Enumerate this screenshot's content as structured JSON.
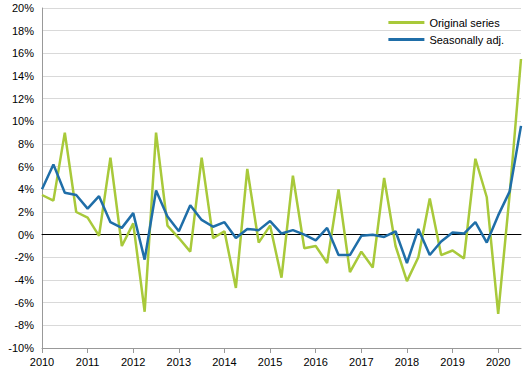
{
  "chart_data": {
    "type": "line",
    "categories": [
      "2010",
      null,
      null,
      null,
      "2011",
      null,
      null,
      null,
      "2012",
      null,
      null,
      null,
      "2013",
      null,
      null,
      null,
      "2014",
      null,
      null,
      null,
      "2015",
      null,
      null,
      null,
      "2016",
      null,
      null,
      null,
      "2017",
      null,
      null,
      null,
      "2018",
      null,
      null,
      null,
      "2019",
      null,
      null,
      null,
      "2020",
      null,
      null
    ],
    "series": [
      {
        "name": "Original series",
        "color": "#a8c93a",
        "values": [
          3.5,
          3.0,
          9.0,
          2.0,
          1.5,
          -0.1,
          6.8,
          -1.0,
          1.0,
          -6.8,
          9.0,
          0.8,
          -0.3,
          -1.5,
          6.8,
          -0.3,
          0.3,
          -4.7,
          5.8,
          -0.7,
          0.8,
          -3.8,
          5.2,
          -1.2,
          -1.0,
          -2.5,
          4.0,
          -3.3,
          -1.5,
          -2.9,
          5.0,
          -1.0,
          -4.1,
          -2.0,
          3.2,
          -1.8,
          -1.4,
          -2.1,
          6.7,
          3.3,
          -7.0,
          3.5,
          15.5
        ]
      },
      {
        "name": "Seasonally adj.",
        "color": "#1f6ea8",
        "values": [
          4.0,
          6.2,
          3.7,
          3.5,
          2.3,
          3.4,
          1.1,
          0.6,
          1.9,
          -2.2,
          3.9,
          1.6,
          0.3,
          2.6,
          1.3,
          0.7,
          1.1,
          -0.3,
          0.5,
          0.4,
          1.2,
          0.1,
          0.4,
          0.0,
          -0.5,
          0.6,
          -1.8,
          -1.8,
          -0.1,
          0.0,
          -0.2,
          0.3,
          -2.5,
          0.5,
          -1.8,
          -0.6,
          0.2,
          0.1,
          1.1,
          -0.7,
          1.7,
          3.8,
          9.6
        ]
      }
    ],
    "ylim": [
      -10,
      20
    ],
    "yticks": [
      {
        "value": -10,
        "label": "-10%"
      },
      {
        "value": -8,
        "label": "-8%"
      },
      {
        "value": -6,
        "label": "-6%"
      },
      {
        "value": -4,
        "label": "-4%"
      },
      {
        "value": -2,
        "label": "-2%"
      },
      {
        "value": 0,
        "label": "0%"
      },
      {
        "value": 2,
        "label": "2%"
      },
      {
        "value": 4,
        "label": "4%"
      },
      {
        "value": 6,
        "label": "6%"
      },
      {
        "value": 8,
        "label": "8%"
      },
      {
        "value": 10,
        "label": "10%"
      },
      {
        "value": 12,
        "label": "12%"
      },
      {
        "value": 14,
        "label": "14%"
      },
      {
        "value": 16,
        "label": "16%"
      },
      {
        "value": 18,
        "label": "18%"
      },
      {
        "value": 20,
        "label": "20%"
      }
    ],
    "grid": true,
    "legend": "upper right"
  }
}
